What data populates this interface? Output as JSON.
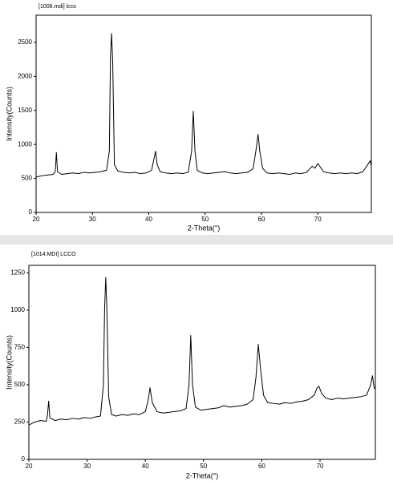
{
  "chart_data": [
    {
      "type": "line",
      "title": "[1008.mdi] lcco",
      "x_label": "2-Theta(°)",
      "y_label": "Intensity(Counts)",
      "xlim": [
        20,
        79.5
      ],
      "ylim": [
        0,
        2900
      ],
      "xticks": [
        20,
        30,
        40,
        50,
        60,
        70
      ],
      "yticks": [
        0,
        500,
        1000,
        1500,
        2000,
        2500
      ],
      "series": [
        {
          "color": "#000000",
          "x": [
            20,
            21,
            22,
            23,
            23.4,
            23.6,
            23.8,
            24.5,
            25.5,
            26.5,
            27.5,
            28.5,
            29.5,
            30.5,
            31.5,
            32.5,
            33,
            33.2,
            33.4,
            33.6,
            33.9,
            34.5,
            35.5,
            36.5,
            37.5,
            38.5,
            39.5,
            40.5,
            41,
            41.2,
            41.5,
            42,
            43,
            44,
            45,
            46,
            47,
            47.6,
            47.9,
            48.2,
            48.6,
            49.5,
            50.5,
            51.5,
            52.5,
            53.5,
            54.5,
            55.5,
            56.5,
            57.5,
            58.5,
            59,
            59.4,
            59.7,
            60.2,
            61,
            62,
            63,
            64,
            65,
            66,
            67,
            68,
            69,
            69.5,
            70,
            70.5,
            71,
            72,
            73,
            74,
            75,
            76,
            77,
            78,
            79,
            79.3,
            79.5
          ],
          "values": [
            520,
            540,
            550,
            560,
            600,
            880,
            600,
            560,
            570,
            580,
            570,
            590,
            580,
            590,
            600,
            620,
            900,
            2300,
            2630,
            2200,
            700,
            610,
            590,
            580,
            590,
            570,
            580,
            620,
            820,
            900,
            700,
            600,
            580,
            570,
            580,
            570,
            590,
            900,
            1490,
            900,
            620,
            580,
            570,
            580,
            590,
            600,
            580,
            570,
            580,
            590,
            640,
            900,
            1150,
            900,
            650,
            580,
            570,
            580,
            570,
            560,
            580,
            570,
            590,
            680,
            650,
            720,
            660,
            600,
            580,
            570,
            580,
            570,
            580,
            570,
            600,
            720,
            760,
            680
          ]
        }
      ]
    },
    {
      "type": "line",
      "title": "[1014.MDI] LCCO",
      "x_label": "2-Theta(°)",
      "y_label": "Intensity(Counts)",
      "xlim": [
        20,
        79.5
      ],
      "ylim": [
        0,
        1300
      ],
      "xticks": [
        20,
        30,
        40,
        50,
        60,
        70
      ],
      "yticks": [
        0,
        250,
        500,
        750,
        1000,
        1250
      ],
      "series": [
        {
          "color": "#000000",
          "x": [
            20,
            21,
            22,
            23,
            23.2,
            23.4,
            23.6,
            24.5,
            25.5,
            26.5,
            27.5,
            28.5,
            29.5,
            30.5,
            31.5,
            32.3,
            32.8,
            33,
            33.2,
            33.4,
            33.7,
            34.2,
            35,
            36,
            37,
            38,
            39,
            40,
            40.5,
            40.8,
            41.2,
            42,
            43,
            44,
            45,
            46,
            47,
            47.5,
            47.8,
            48.1,
            48.6,
            49.5,
            50.5,
            51.5,
            52.5,
            53.5,
            54.5,
            55.5,
            56.5,
            57.5,
            58.5,
            59,
            59.4,
            59.8,
            60.3,
            61,
            62,
            63,
            64,
            65,
            66,
            67,
            68,
            69,
            69.5,
            69.8,
            70.3,
            71,
            72,
            73,
            74,
            75,
            76,
            77,
            78,
            78.7,
            79,
            79.3,
            79.5
          ],
          "values": [
            230,
            250,
            260,
            255,
            300,
            390,
            280,
            260,
            270,
            265,
            275,
            270,
            280,
            275,
            285,
            290,
            500,
            1000,
            1220,
            1000,
            420,
            300,
            290,
            300,
            295,
            305,
            300,
            320,
            400,
            480,
            380,
            320,
            310,
            315,
            320,
            325,
            340,
            500,
            830,
            500,
            350,
            330,
            335,
            340,
            345,
            360,
            350,
            355,
            360,
            370,
            400,
            550,
            770,
            600,
            430,
            380,
            375,
            370,
            380,
            375,
            385,
            390,
            400,
            430,
            480,
            490,
            440,
            410,
            400,
            410,
            405,
            410,
            415,
            420,
            430,
            500,
            560,
            480,
            470
          ]
        }
      ]
    }
  ]
}
